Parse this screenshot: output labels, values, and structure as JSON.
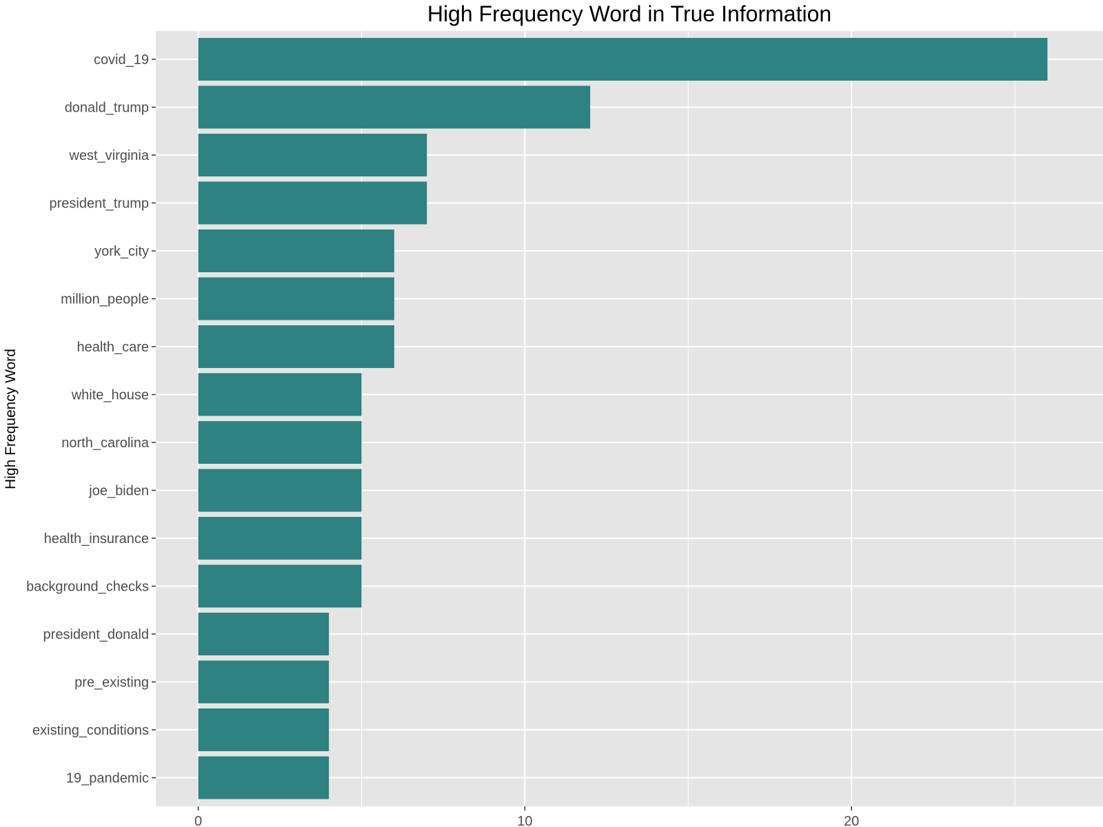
{
  "chart_data": {
    "type": "bar",
    "orientation": "horizontal",
    "title": "High Frequency Word in True Information",
    "xlabel": "",
    "ylabel": "High Frequency Word",
    "categories": [
      "covid_19",
      "donald_trump",
      "west_virginia",
      "president_trump",
      "york_city",
      "million_people",
      "health_care",
      "white_house",
      "north_carolina",
      "joe_biden",
      "health_insurance",
      "background_checks",
      "president_donald",
      "pre_existing",
      "existing_conditions",
      "19_pandemic"
    ],
    "values": [
      26,
      12,
      7,
      7,
      6,
      6,
      6,
      5,
      5,
      5,
      5,
      5,
      4,
      4,
      4,
      4
    ],
    "xlim": [
      -1.3,
      27.7
    ],
    "xticks": [
      0,
      10,
      20
    ],
    "xtick_labels": [
      "0",
      "10",
      "20"
    ],
    "grid": true,
    "bar_color": "#2e8282",
    "panel_background": "#e5e5e5",
    "gridline_color": "#ffffff"
  }
}
